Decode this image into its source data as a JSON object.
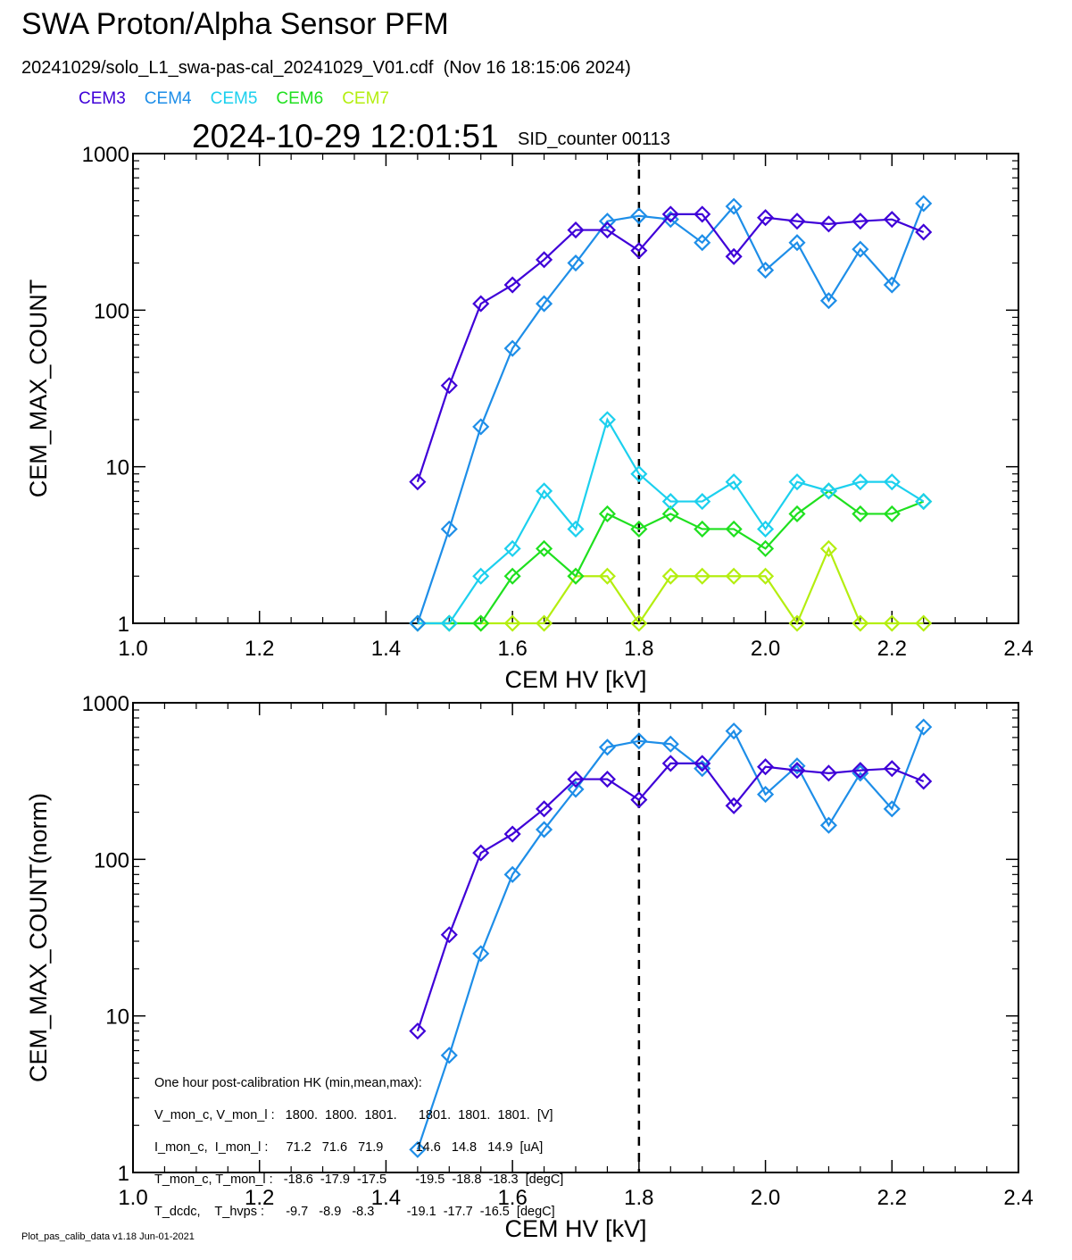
{
  "header": {
    "title": "SWA Proton/Alpha Sensor PFM",
    "subtitle": "20241029/solo_L1_swa-pas-cal_20241029_V01.cdf  (Nov 16 18:15:06 2024)",
    "timestamp": "2024-10-29 12:01:51",
    "sid_counter": "SID_counter 00113"
  },
  "legend": [
    {
      "label": "CEM3",
      "color": "#3f00d8"
    },
    {
      "label": "CEM4",
      "color": "#1e8ee8"
    },
    {
      "label": "CEM5",
      "color": "#1cd0ee"
    },
    {
      "label": "CEM6",
      "color": "#1fe01f"
    },
    {
      "label": "CEM7",
      "color": "#b4ee10"
    }
  ],
  "hk_box": {
    "lines": [
      "One hour post-calibration HK (min,mean,max):",
      "V_mon_c, V_mon_l :   1800.  1800.  1801.      1801.  1801.  1801.  [V]",
      "I_mon_c,  I_mon_l :     71.2   71.6   71.9         14.6   14.8   14.9  [uA]",
      "T_mon_c, T_mon_l :   -18.6  -17.9  -17.5        -19.5  -18.8  -18.3  [degC]",
      "T_dcdc,    T_hvps :      -9.7   -8.9   -8.3         -19.1  -17.7  -16.5  [degC]"
    ]
  },
  "footer": "Plot_pas_calib_data v1.18 Jun-01-2021",
  "chart_data": [
    {
      "type": "line",
      "xlabel": "CEM HV [kV]",
      "ylabel": "CEM_MAX_COUNT",
      "xlim": [
        1.0,
        2.4
      ],
      "ylim": [
        1,
        1000
      ],
      "yscale": "log",
      "xticks": [
        "1.0",
        "1.2",
        "1.4",
        "1.6",
        "1.8",
        "2.0",
        "2.2",
        "2.4"
      ],
      "yticks": [
        "1",
        "10",
        "100",
        "1000"
      ],
      "vline": 1.8,
      "x": [
        1.45,
        1.5,
        1.55,
        1.6,
        1.65,
        1.7,
        1.75,
        1.8,
        1.85,
        1.9,
        1.95,
        2.0,
        2.05,
        2.1,
        2.15,
        2.2,
        2.25
      ],
      "series": [
        {
          "name": "CEM3",
          "color": "#3f00d8",
          "values": [
            8,
            33,
            110,
            145,
            210,
            325,
            325,
            240,
            410,
            410,
            220,
            390,
            370,
            355,
            370,
            380,
            315
          ]
        },
        {
          "name": "CEM4",
          "color": "#1e8ee8",
          "values": [
            1,
            4,
            18,
            57,
            110,
            200,
            370,
            400,
            380,
            270,
            460,
            180,
            270,
            115,
            245,
            145,
            480
          ]
        },
        {
          "name": "CEM5",
          "color": "#1cd0ee",
          "values": [
            1,
            1,
            2,
            3,
            7,
            4,
            20,
            9,
            6,
            6,
            8,
            4,
            8,
            7,
            8,
            8,
            6
          ]
        },
        {
          "name": "CEM6",
          "color": "#1fe01f",
          "values": [
            1,
            1,
            1,
            2,
            3,
            2,
            5,
            4,
            5,
            4,
            4,
            3,
            5,
            7,
            5,
            5,
            6
          ]
        },
        {
          "name": "CEM7",
          "color": "#b4ee10",
          "values": [
            1,
            1,
            1,
            1,
            1,
            2,
            2,
            1,
            2,
            2,
            2,
            2,
            1,
            3,
            1,
            1,
            1
          ]
        }
      ]
    },
    {
      "type": "line",
      "xlabel": "CEM HV [kV]",
      "ylabel": "CEM_MAX_COUNT(norm)",
      "xlim": [
        1.0,
        2.4
      ],
      "ylim": [
        1,
        1000
      ],
      "yscale": "log",
      "xticks": [
        "1.0",
        "1.2",
        "1.4",
        "1.6",
        "1.8",
        "2.0",
        "2.2",
        "2.4"
      ],
      "yticks": [
        "1",
        "10",
        "100",
        "1000"
      ],
      "vline": 1.8,
      "x": [
        1.45,
        1.5,
        1.55,
        1.6,
        1.65,
        1.7,
        1.75,
        1.8,
        1.85,
        1.9,
        1.95,
        2.0,
        2.05,
        2.1,
        2.15,
        2.2,
        2.25
      ],
      "series": [
        {
          "name": "CEM3",
          "color": "#3f00d8",
          "values": [
            8,
            33,
            110,
            145,
            210,
            325,
            325,
            240,
            410,
            410,
            220,
            390,
            370,
            355,
            370,
            380,
            315
          ]
        },
        {
          "name": "CEM4",
          "color": "#1e8ee8",
          "values": [
            1.4,
            5.6,
            25,
            80,
            155,
            280,
            520,
            570,
            545,
            380,
            660,
            260,
            395,
            165,
            355,
            210,
            700
          ]
        }
      ]
    }
  ]
}
